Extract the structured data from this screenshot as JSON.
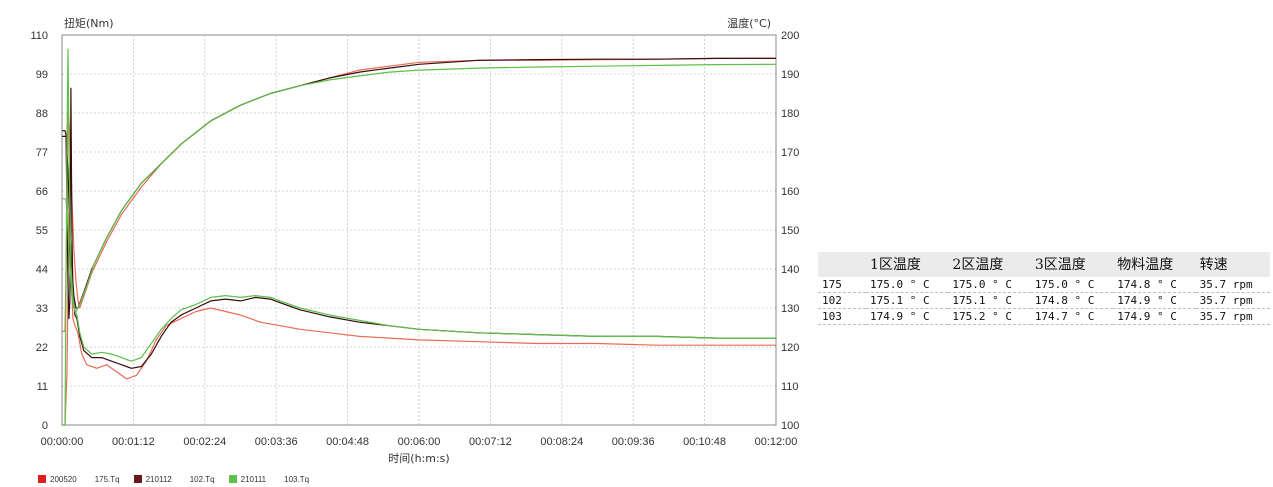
{
  "chart_data": {
    "type": "line",
    "x_axis": {
      "label": "时间(h:m:s)",
      "ticks": [
        "00:00:00",
        "00:01:12",
        "00:02:24",
        "00:03:36",
        "00:04:48",
        "00:06:00",
        "00:07:12",
        "00:08:24",
        "00:09:36",
        "00:10:48",
        "00:12:00"
      ],
      "range_seconds": [
        0,
        720
      ]
    },
    "y_axis_left": {
      "label": "扭矩(Nm)",
      "ticks": [
        0,
        11,
        22,
        33,
        44,
        55,
        66,
        77,
        88,
        99,
        110
      ],
      "range": [
        0,
        110
      ]
    },
    "y_axis_right": {
      "label": "温度(°C)",
      "ticks": [
        100,
        110,
        120,
        130,
        140,
        150,
        160,
        170,
        180,
        190,
        200
      ],
      "range": [
        100,
        200
      ]
    },
    "grid": true,
    "legend_position": "bottom",
    "legend": [
      {
        "code": "200520",
        "name": "175.Tq",
        "color": "#e02020"
      },
      {
        "code": "210112",
        "name": "102.Tq",
        "color": "#6b1a1a"
      },
      {
        "code": "210111",
        "name": "103.Tq",
        "color": "#5cc04a"
      }
    ],
    "series": [
      {
        "id": "175-temp",
        "axis": "right",
        "color": "#e86b55",
        "points": [
          [
            0,
            124
          ],
          [
            3,
            124
          ],
          [
            5,
            155
          ],
          [
            6,
            180
          ],
          [
            8,
            175
          ],
          [
            10,
            158
          ],
          [
            12,
            145
          ],
          [
            14,
            137
          ],
          [
            16,
            132
          ],
          [
            18,
            130
          ],
          [
            22,
            133
          ],
          [
            30,
            139
          ],
          [
            45,
            147
          ],
          [
            60,
            154
          ],
          [
            80,
            161
          ],
          [
            100,
            167
          ],
          [
            120,
            172
          ],
          [
            150,
            178
          ],
          [
            180,
            182
          ],
          [
            210,
            185
          ],
          [
            240,
            187
          ],
          [
            270,
            189
          ],
          [
            300,
            191
          ],
          [
            330,
            192
          ],
          [
            360,
            193
          ],
          [
            420,
            193.5
          ],
          [
            480,
            193.5
          ],
          [
            540,
            193.7
          ],
          [
            600,
            193.8
          ],
          [
            660,
            194
          ],
          [
            720,
            194
          ]
        ]
      },
      {
        "id": "175-torque",
        "axis": "left",
        "color": "#e86b55",
        "points": [
          [
            0,
            0
          ],
          [
            3,
            0
          ],
          [
            5,
            15
          ],
          [
            7,
            60
          ],
          [
            9,
            45
          ],
          [
            11,
            30
          ],
          [
            13,
            28
          ],
          [
            16,
            26
          ],
          [
            20,
            20
          ],
          [
            25,
            17
          ],
          [
            35,
            16
          ],
          [
            45,
            17
          ],
          [
            55,
            15
          ],
          [
            65,
            13
          ],
          [
            75,
            14
          ],
          [
            85,
            18
          ],
          [
            95,
            24
          ],
          [
            105,
            28
          ],
          [
            120,
            30
          ],
          [
            135,
            32
          ],
          [
            150,
            33
          ],
          [
            165,
            32
          ],
          [
            180,
            31
          ],
          [
            200,
            29
          ],
          [
            220,
            28
          ],
          [
            240,
            27
          ],
          [
            270,
            26
          ],
          [
            300,
            25
          ],
          [
            330,
            24.5
          ],
          [
            360,
            24
          ],
          [
            420,
            23.5
          ],
          [
            480,
            23
          ],
          [
            540,
            23
          ],
          [
            600,
            22.5
          ],
          [
            660,
            22.5
          ],
          [
            720,
            22.5
          ]
        ]
      },
      {
        "id": "102-temp",
        "axis": "right",
        "color": "#3a0d0d",
        "points": [
          [
            0,
            174
          ],
          [
            4,
            174
          ],
          [
            6,
            165
          ],
          [
            8,
            150
          ],
          [
            10,
            140
          ],
          [
            12,
            133
          ],
          [
            14,
            130
          ],
          [
            16,
            130
          ],
          [
            22,
            134
          ],
          [
            30,
            140
          ],
          [
            45,
            148
          ],
          [
            60,
            155
          ],
          [
            80,
            162
          ],
          [
            100,
            167
          ],
          [
            120,
            172
          ],
          [
            150,
            178
          ],
          [
            180,
            182
          ],
          [
            210,
            185
          ],
          [
            240,
            187
          ],
          [
            270,
            189
          ],
          [
            300,
            190.5
          ],
          [
            330,
            191.5
          ],
          [
            360,
            192.5
          ],
          [
            420,
            193.5
          ],
          [
            480,
            193.7
          ],
          [
            540,
            193.8
          ],
          [
            600,
            193.8
          ],
          [
            660,
            194
          ],
          [
            720,
            194
          ]
        ]
      },
      {
        "id": "102-torque",
        "axis": "left",
        "color": "#3a0d0d",
        "points": [
          [
            0,
            83
          ],
          [
            3,
            83
          ],
          [
            4,
            82
          ],
          [
            5,
            60
          ],
          [
            6,
            40
          ],
          [
            7,
            30
          ],
          [
            8,
            35
          ],
          [
            9,
            95
          ],
          [
            10,
            55
          ],
          [
            11,
            38
          ],
          [
            13,
            31
          ],
          [
            15,
            30
          ],
          [
            18,
            25
          ],
          [
            22,
            21
          ],
          [
            30,
            19
          ],
          [
            40,
            19
          ],
          [
            50,
            18
          ],
          [
            60,
            17
          ],
          [
            70,
            16
          ],
          [
            80,
            16.5
          ],
          [
            90,
            20
          ],
          [
            100,
            25
          ],
          [
            110,
            29
          ],
          [
            120,
            31
          ],
          [
            135,
            33
          ],
          [
            150,
            35
          ],
          [
            165,
            35.5
          ],
          [
            180,
            35
          ],
          [
            195,
            36
          ],
          [
            210,
            35.5
          ],
          [
            225,
            34
          ],
          [
            240,
            32.5
          ],
          [
            270,
            30.5
          ],
          [
            300,
            29
          ],
          [
            330,
            28
          ],
          [
            360,
            27
          ],
          [
            420,
            26
          ],
          [
            480,
            25.5
          ],
          [
            540,
            25
          ],
          [
            600,
            25
          ],
          [
            660,
            24.5
          ],
          [
            720,
            24.5
          ]
        ]
      },
      {
        "id": "103-temp",
        "axis": "right",
        "color": "#5cc04a",
        "points": [
          [
            0,
            158
          ],
          [
            4,
            158
          ],
          [
            6,
            150
          ],
          [
            8,
            140
          ],
          [
            10,
            133
          ],
          [
            12,
            130
          ],
          [
            14,
            129
          ],
          [
            18,
            131
          ],
          [
            24,
            135
          ],
          [
            32,
            141
          ],
          [
            45,
            148
          ],
          [
            60,
            155
          ],
          [
            80,
            162
          ],
          [
            100,
            167
          ],
          [
            120,
            172
          ],
          [
            150,
            178
          ],
          [
            180,
            182
          ],
          [
            210,
            185
          ],
          [
            240,
            187
          ],
          [
            270,
            188.5
          ],
          [
            300,
            189.5
          ],
          [
            330,
            190.5
          ],
          [
            360,
            191
          ],
          [
            420,
            191.5
          ],
          [
            480,
            191.8
          ],
          [
            540,
            192
          ],
          [
            600,
            192.2
          ],
          [
            660,
            192.4
          ],
          [
            720,
            192.5
          ]
        ]
      },
      {
        "id": "103-torque",
        "axis": "left",
        "color": "#5cc04a",
        "points": [
          [
            0,
            0
          ],
          [
            3,
            0
          ],
          [
            4,
            40
          ],
          [
            5,
            80
          ],
          [
            6,
            106
          ],
          [
            7,
            82
          ],
          [
            8,
            60
          ],
          [
            9,
            45
          ],
          [
            11,
            36
          ],
          [
            13,
            32
          ],
          [
            15,
            31
          ],
          [
            18,
            26
          ],
          [
            22,
            22
          ],
          [
            30,
            20
          ],
          [
            40,
            20.5
          ],
          [
            50,
            20
          ],
          [
            60,
            19
          ],
          [
            70,
            18
          ],
          [
            80,
            19
          ],
          [
            90,
            23
          ],
          [
            100,
            27
          ],
          [
            110,
            30
          ],
          [
            120,
            32.5
          ],
          [
            135,
            34
          ],
          [
            150,
            36
          ],
          [
            165,
            36.5
          ],
          [
            180,
            36
          ],
          [
            195,
            36.5
          ],
          [
            210,
            36
          ],
          [
            225,
            34.5
          ],
          [
            240,
            33
          ],
          [
            270,
            31
          ],
          [
            300,
            29.5
          ],
          [
            330,
            28
          ],
          [
            360,
            27
          ],
          [
            420,
            26
          ],
          [
            480,
            25.5
          ],
          [
            540,
            25
          ],
          [
            600,
            25
          ],
          [
            660,
            24.5
          ],
          [
            720,
            24.5
          ]
        ]
      }
    ]
  },
  "table": {
    "headers": [
      "",
      "1区温度",
      "2区温度",
      "3区温度",
      "物料温度",
      "转速"
    ],
    "rows": [
      [
        "175",
        "175.0 ° C",
        "175.0 ° C",
        "175.0 ° C",
        "174.8 ° C",
        "35.7 rpm"
      ],
      [
        "102",
        "175.1 ° C",
        "175.1 ° C",
        "174.8 ° C",
        "174.9 ° C",
        "35.7 rpm"
      ],
      [
        "103",
        "174.9 ° C",
        "175.2 ° C",
        "174.7 ° C",
        "174.9 ° C",
        "35.7 rpm"
      ]
    ]
  }
}
